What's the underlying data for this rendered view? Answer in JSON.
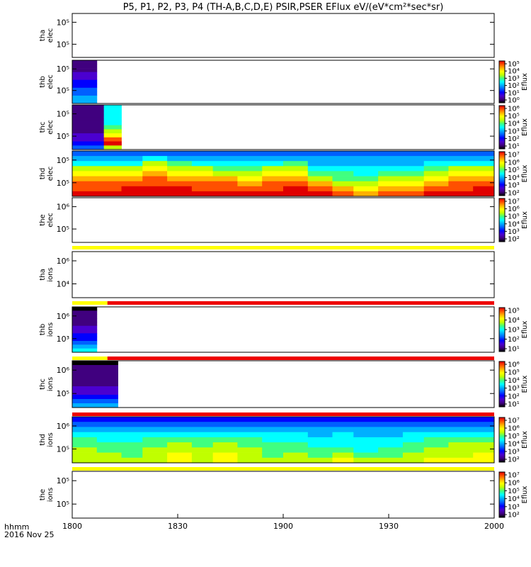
{
  "chart_data": {
    "type": "heatmap",
    "title": "P5, P1, P2, P3, P4 (TH-A,B,C,D,E) PSIR,PSER EFlux eV/(eV*cm²*sec*sr)",
    "x_ticks": [
      "1800",
      "1830",
      "1900",
      "1930",
      "2000"
    ],
    "x_range_minutes": [
      0,
      120
    ],
    "x_label_line1": "hhmm",
    "x_label_line2": "2016 Nov 25",
    "colorbar_label": "Eflux",
    "colormap": [
      "#000000",
      "#40007f",
      "#4b00d0",
      "#0000ff",
      "#0060ff",
      "#00b0ff",
      "#00ffff",
      "#40ff80",
      "#c0ff00",
      "#ffff00",
      "#ffb000",
      "#ff5000",
      "#e00000"
    ],
    "status_bar_colors": {
      "yellow": "#ffff00",
      "red": "#ee0000"
    },
    "panels": [
      {
        "probe": "tha",
        "species": "elec",
        "yticks": [
          "10⁵",
          "10⁵"
        ],
        "colorbar": [],
        "columns": []
      },
      {
        "probe": "thb",
        "species": "elec",
        "yticks": [
          "10⁵",
          "10⁵"
        ],
        "colorbar": [
          "10⁵",
          "10⁴",
          "10³",
          "10²",
          "10¹",
          "10⁰"
        ],
        "columns": [
          {
            "t0": 0,
            "t1": 7,
            "rows": [
              1,
              1,
              1,
              2,
              2,
              3,
              3,
              4,
              4,
              5,
              5
            ]
          }
        ]
      },
      {
        "probe": "thc",
        "species": "elec",
        "yticks": [
          "10⁵",
          "10⁵"
        ],
        "colorbar": [
          "10⁶",
          "10⁵",
          "10⁴",
          "10³",
          "10²",
          "10¹"
        ],
        "columns": [
          {
            "t0": 0,
            "t1": 9,
            "rows": [
              1,
              1,
              1,
              1,
              1,
              1,
              1,
              2,
              2,
              3,
              4
            ]
          },
          {
            "t0": 9,
            "t1": 14,
            "rows": [
              6,
              6,
              6,
              6,
              6,
              7,
              8,
              9,
              11,
              12,
              8
            ]
          }
        ]
      },
      {
        "probe": "thd",
        "species": "elec",
        "yticks": [
          "10⁵",
          "10⁵"
        ],
        "colorbar": [
          "10⁷",
          "10⁶",
          "10⁵",
          "10⁴",
          "10³",
          "10²"
        ],
        "columns": [
          {
            "t0": 0,
            "t1": 7,
            "rows": [
              4,
              5,
              6,
              8,
              9,
              10,
              11,
              11,
              12
            ]
          },
          {
            "t0": 7,
            "t1": 14,
            "rows": [
              4,
              5,
              6,
              8,
              9,
              10,
              11,
              11,
              12
            ]
          },
          {
            "t0": 14,
            "t1": 20,
            "rows": [
              4,
              5,
              6,
              8,
              9,
              10,
              11,
              12,
              12
            ]
          },
          {
            "t0": 20,
            "t1": 27,
            "rows": [
              4,
              6,
              8,
              9,
              10,
              11,
              11,
              12,
              12
            ]
          },
          {
            "t0": 27,
            "t1": 34,
            "rows": [
              4,
              5,
              7,
              8,
              9,
              10,
              11,
              12,
              12
            ]
          },
          {
            "t0": 34,
            "t1": 40,
            "rows": [
              4,
              5,
              6,
              8,
              9,
              10,
              11,
              11,
              12
            ]
          },
          {
            "t0": 40,
            "t1": 47,
            "rows": [
              4,
              5,
              6,
              7,
              8,
              10,
              11,
              11,
              12
            ]
          },
          {
            "t0": 47,
            "t1": 54,
            "rows": [
              4,
              5,
              6,
              7,
              8,
              9,
              10,
              11,
              12
            ]
          },
          {
            "t0": 54,
            "t1": 60,
            "rows": [
              4,
              5,
              6,
              8,
              9,
              10,
              11,
              11,
              12
            ]
          },
          {
            "t0": 60,
            "t1": 67,
            "rows": [
              4,
              5,
              7,
              8,
              9,
              10,
              11,
              12,
              12
            ]
          },
          {
            "t0": 67,
            "t1": 74,
            "rows": [
              4,
              5,
              5,
              6,
              7,
              8,
              10,
              11,
              12
            ]
          },
          {
            "t0": 74,
            "t1": 80,
            "rows": [
              4,
              5,
              5,
              6,
              7,
              7,
              8,
              10,
              11
            ]
          },
          {
            "t0": 80,
            "t1": 87,
            "rows": [
              4,
              5,
              5,
              6,
              6,
              7,
              8,
              9,
              10
            ]
          },
          {
            "t0": 87,
            "t1": 94,
            "rows": [
              4,
              5,
              5,
              6,
              7,
              8,
              9,
              10,
              11
            ]
          },
          {
            "t0": 94,
            "t1": 100,
            "rows": [
              4,
              5,
              5,
              6,
              7,
              8,
              9,
              10,
              11
            ]
          },
          {
            "t0": 100,
            "t1": 107,
            "rows": [
              4,
              5,
              6,
              7,
              8,
              9,
              10,
              11,
              12
            ]
          },
          {
            "t0": 107,
            "t1": 114,
            "rows": [
              4,
              5,
              6,
              8,
              9,
              10,
              11,
              11,
              12
            ]
          },
          {
            "t0": 114,
            "t1": 120,
            "rows": [
              4,
              5,
              6,
              8,
              9,
              10,
              11,
              12,
              12
            ]
          }
        ]
      },
      {
        "probe": "the",
        "species": "elec",
        "yticks": [
          "10⁶",
          "10⁵"
        ],
        "colorbar": [
          "10⁷",
          "10⁶",
          "10⁵",
          "10⁴",
          "10³",
          "10²"
        ],
        "columns": []
      },
      {
        "probe": "tha",
        "species": "ions",
        "yticks": [
          "10⁶",
          "10⁴"
        ],
        "colorbar": [],
        "columns": []
      },
      {
        "probe": "thb",
        "species": "ions",
        "yticks": [
          "10⁶",
          "10³"
        ],
        "colorbar": [
          "10⁵",
          "10⁴",
          "10³",
          "10²",
          "10¹"
        ],
        "columns": [
          {
            "t0": 0,
            "t1": 7,
            "rows": [
              0,
              1,
              1,
              1,
              1,
              2,
              2,
              3,
              3,
              4,
              5,
              6
            ]
          }
        ]
      },
      {
        "probe": "thc",
        "species": "ions",
        "yticks": [
          "10⁶",
          "10⁵"
        ],
        "colorbar": [
          "10⁶",
          "10⁵",
          "10⁴",
          "10³",
          "10²",
          "10¹"
        ],
        "columns": [
          {
            "t0": 0,
            "t1": 13,
            "rows": [
              0,
              1,
              1,
              1,
              1,
              1,
              2,
              2,
              3,
              4,
              5
            ]
          }
        ]
      },
      {
        "probe": "thd",
        "species": "ions",
        "yticks": [
          "10⁶",
          "10⁵"
        ],
        "colorbar": [
          "10⁷",
          "10⁶",
          "10⁵",
          "10⁴",
          "10³",
          "10²"
        ],
        "columns": [
          {
            "t0": 0,
            "t1": 7,
            "rows": [
              3,
              4,
              5,
              6,
              7,
              7,
              8,
              8,
              8
            ]
          },
          {
            "t0": 7,
            "t1": 14,
            "rows": [
              3,
              4,
              5,
              6,
              6,
              7,
              7,
              8,
              8
            ]
          },
          {
            "t0": 14,
            "t1": 20,
            "rows": [
              3,
              4,
              5,
              6,
              6,
              7,
              7,
              7,
              8
            ]
          },
          {
            "t0": 20,
            "t1": 27,
            "rows": [
              3,
              4,
              5,
              6,
              7,
              7,
              8,
              8,
              8
            ]
          },
          {
            "t0": 27,
            "t1": 34,
            "rows": [
              3,
              4,
              5,
              6,
              7,
              8,
              8,
              9,
              9
            ]
          },
          {
            "t0": 34,
            "t1": 40,
            "rows": [
              3,
              4,
              5,
              6,
              7,
              7,
              8,
              8,
              8
            ]
          },
          {
            "t0": 40,
            "t1": 47,
            "rows": [
              3,
              4,
              5,
              6,
              7,
              8,
              8,
              9,
              9
            ]
          },
          {
            "t0": 47,
            "t1": 54,
            "rows": [
              3,
              4,
              5,
              6,
              7,
              7,
              8,
              8,
              8
            ]
          },
          {
            "t0": 54,
            "t1": 60,
            "rows": [
              3,
              4,
              5,
              6,
              6,
              7,
              7,
              7,
              8
            ]
          },
          {
            "t0": 60,
            "t1": 67,
            "rows": [
              3,
              4,
              5,
              6,
              6,
              7,
              7,
              8,
              8
            ]
          },
          {
            "t0": 67,
            "t1": 74,
            "rows": [
              3,
              4,
              5,
              5,
              6,
              6,
              7,
              7,
              8
            ]
          },
          {
            "t0": 74,
            "t1": 80,
            "rows": [
              3,
              4,
              5,
              6,
              6,
              6,
              7,
              8,
              9
            ]
          },
          {
            "t0": 80,
            "t1": 87,
            "rows": [
              3,
              4,
              5,
              5,
              6,
              6,
              6,
              7,
              8
            ]
          },
          {
            "t0": 87,
            "t1": 94,
            "rows": [
              3,
              4,
              5,
              5,
              6,
              6,
              7,
              7,
              8
            ]
          },
          {
            "t0": 94,
            "t1": 100,
            "rows": [
              3,
              4,
              5,
              6,
              6,
              7,
              7,
              8,
              8
            ]
          },
          {
            "t0": 100,
            "t1": 107,
            "rows": [
              3,
              4,
              5,
              6,
              7,
              7,
              8,
              8,
              9
            ]
          },
          {
            "t0": 107,
            "t1": 114,
            "rows": [
              3,
              4,
              5,
              6,
              7,
              8,
              8,
              8,
              9
            ]
          },
          {
            "t0": 114,
            "t1": 120,
            "rows": [
              3,
              4,
              5,
              6,
              7,
              8,
              8,
              9,
              9
            ]
          }
        ]
      },
      {
        "probe": "the",
        "species": "ions",
        "yticks": [
          "10⁵",
          "10⁵"
        ],
        "colorbar": [
          "10⁷",
          "10⁶",
          "10⁵",
          "10⁴",
          "10³",
          "10²"
        ],
        "columns": []
      }
    ],
    "status_bars": [
      {
        "after_panel": 4,
        "segments": [
          {
            "t0": 0,
            "t1": 120,
            "color": "yellow"
          }
        ]
      },
      {
        "after_panel": 5,
        "segments": [
          {
            "t0": 0,
            "t1": 10,
            "color": "yellow"
          },
          {
            "t0": 10,
            "t1": 120,
            "color": "red"
          }
        ]
      },
      {
        "after_panel": 6,
        "segments": [
          {
            "t0": 0,
            "t1": 10,
            "color": "yellow"
          },
          {
            "t0": 10,
            "t1": 120,
            "color": "red"
          }
        ]
      },
      {
        "after_panel": 7,
        "segments": [
          {
            "t0": 0,
            "t1": 120,
            "color": "red"
          }
        ]
      },
      {
        "after_panel": 8,
        "segments": [
          {
            "t0": 0,
            "t1": 120,
            "color": "yellow"
          }
        ]
      }
    ]
  }
}
